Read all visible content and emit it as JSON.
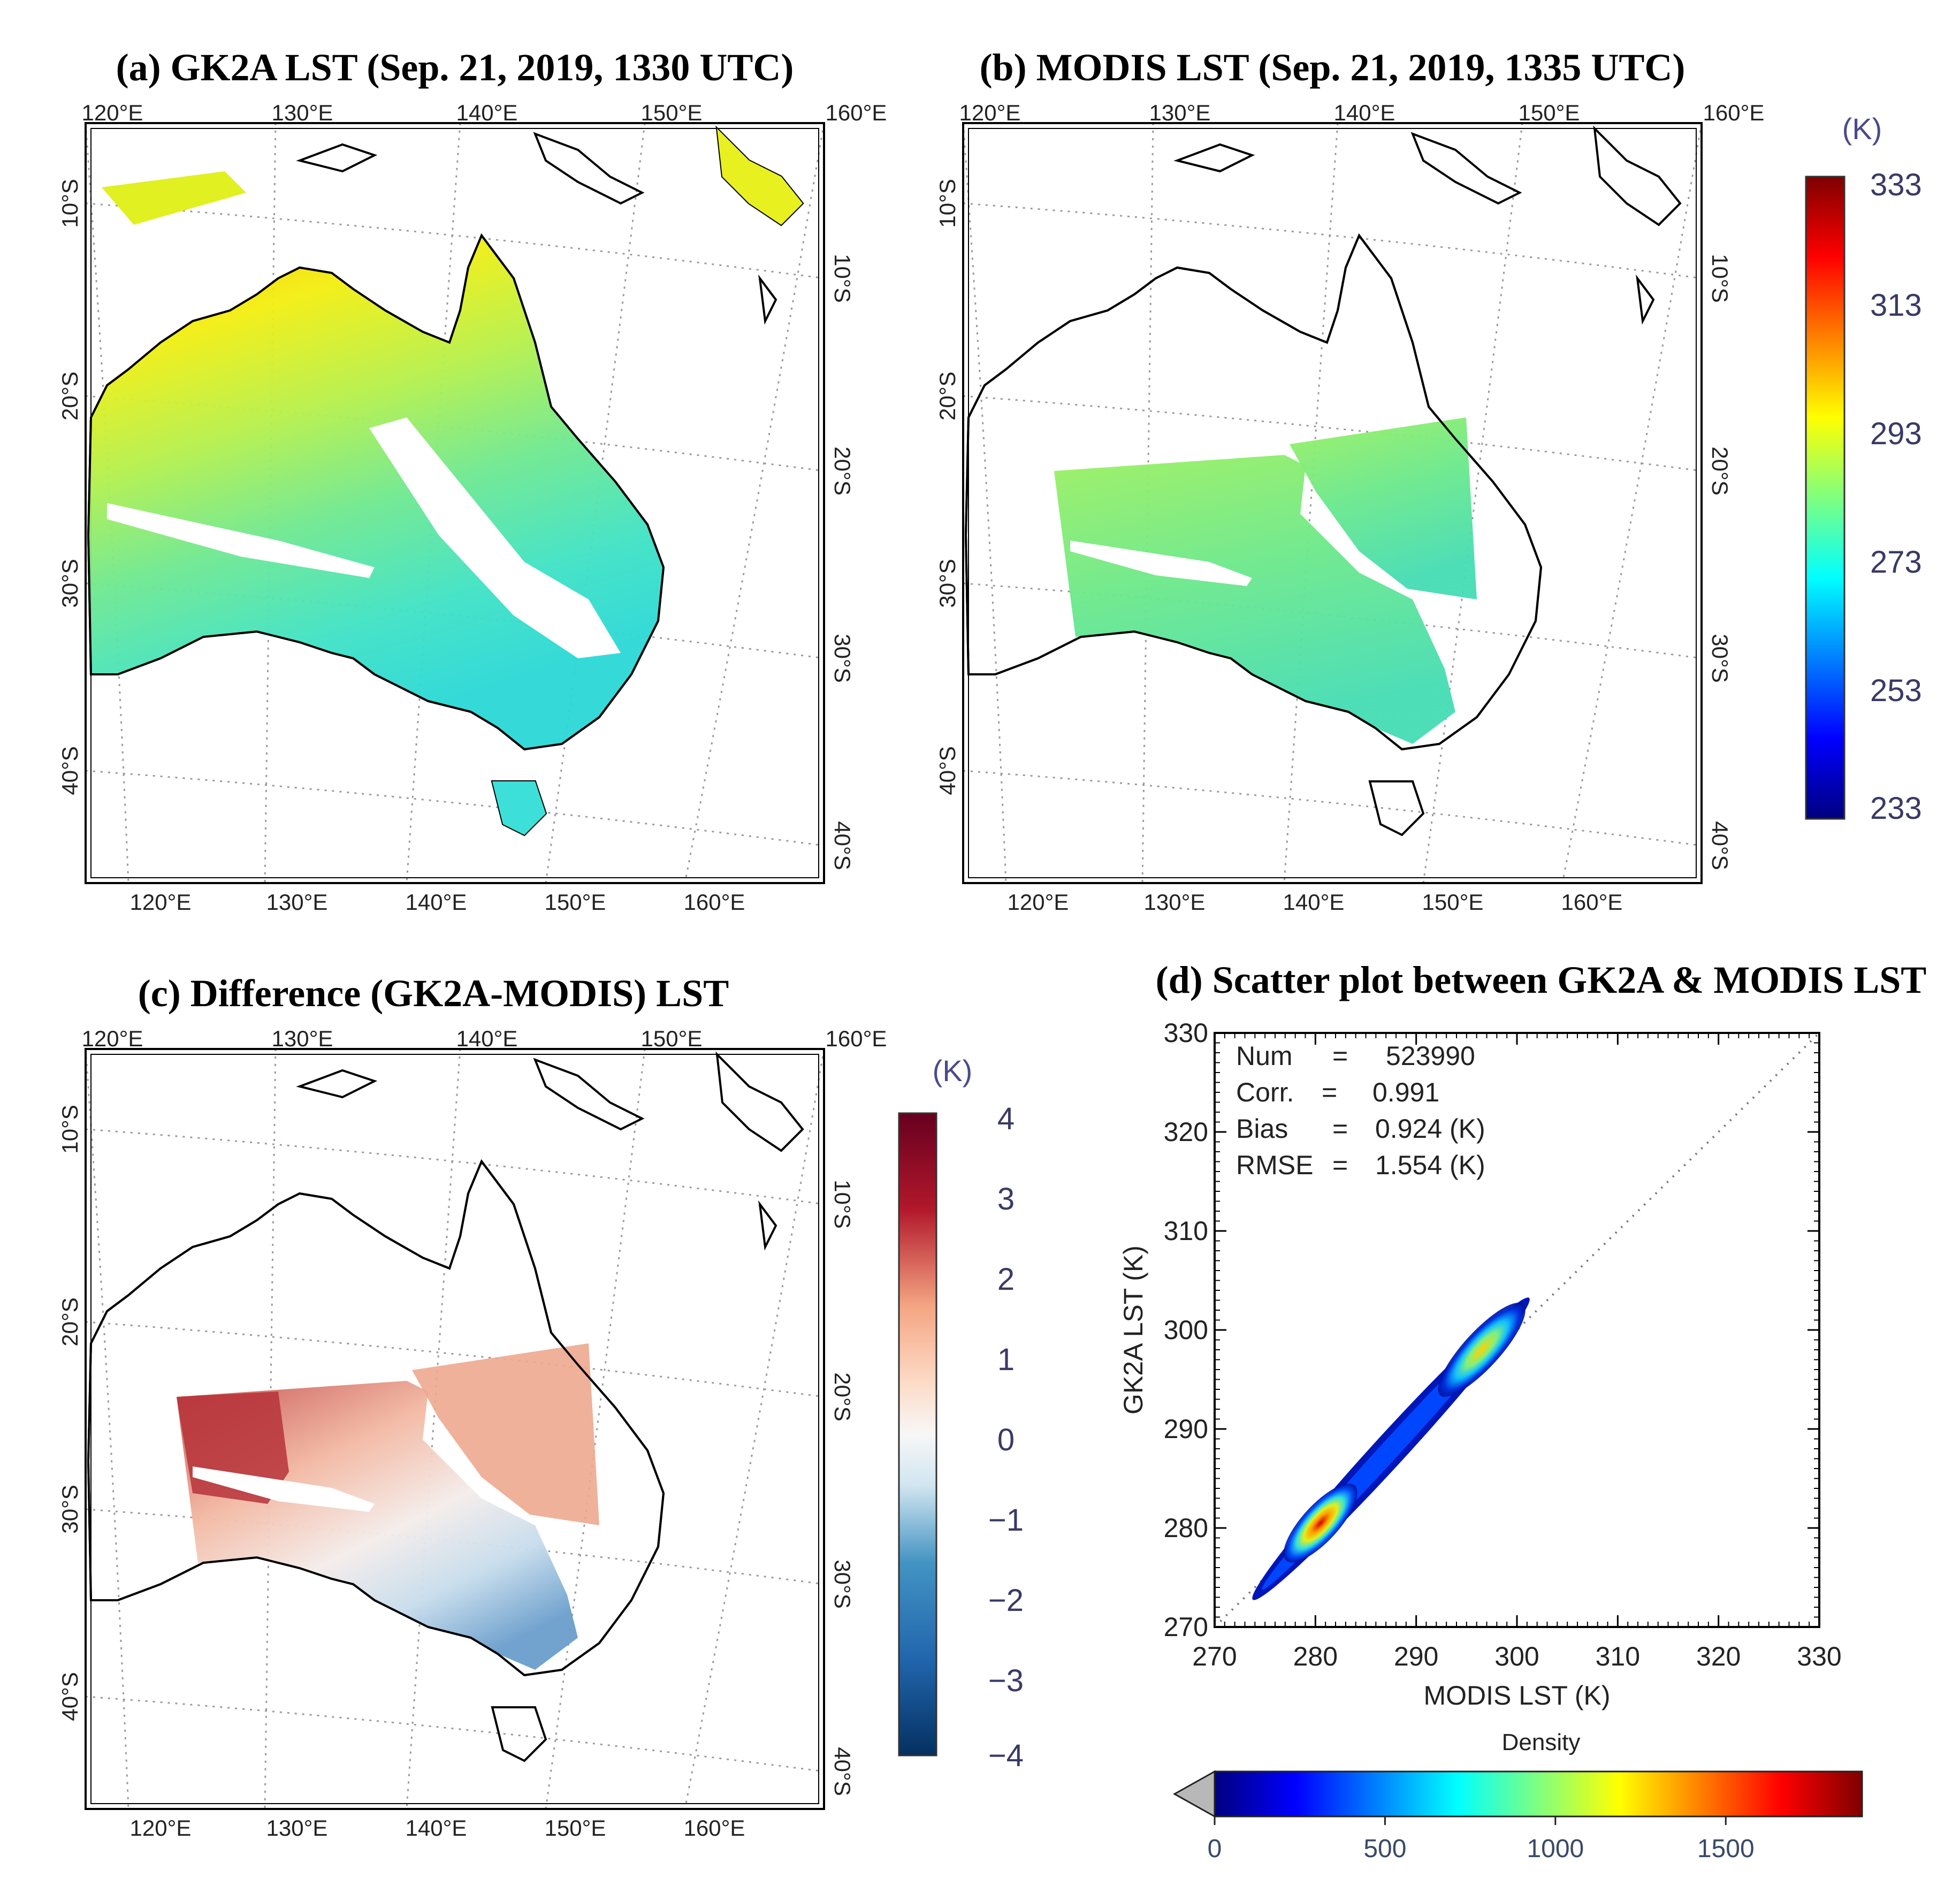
{
  "colors": {
    "jet_dark_blue": "#00007f",
    "jet_blue": "#0000ff",
    "jet_cyan": "#00ffff",
    "jet_green": "#7fff7f",
    "jet_yellow": "#ffff00",
    "jet_red": "#ff0000",
    "jet_dark_red": "#7f0000",
    "rdbu_red": "#67001f",
    "rdbu_white": "#f7f7f7",
    "rdbu_blue": "#053061",
    "land_outline": "#000000"
  },
  "panels": {
    "a": {
      "title": "(a) GK2A LST (Sep. 21, 2019, 1330 UTC)",
      "top_lon_labels": [
        "120°E",
        "130°E",
        "140°E",
        "150°E",
        "160°E"
      ],
      "bottom_lon_labels": [
        "120°E",
        "130°E",
        "140°E",
        "150°E",
        "160°E"
      ],
      "left_lat_labels": [
        "10°S",
        "20°S",
        "30°S",
        "40°S"
      ],
      "right_lat_labels": [
        "10°S",
        "20°S",
        "30°S",
        "40°S"
      ]
    },
    "b": {
      "title": "(b) MODIS LST (Sep. 21, 2019, 1335 UTC)",
      "top_lon_labels": [
        "120°E",
        "130°E",
        "140°E",
        "150°E",
        "160°E"
      ],
      "bottom_lon_labels": [
        "120°E",
        "130°E",
        "140°E",
        "150°E",
        "160°E"
      ],
      "left_lat_labels": [
        "10°S",
        "20°S",
        "30°S",
        "40°S"
      ],
      "right_lat_labels": [
        "10°S",
        "20°S",
        "30°S",
        "40°S"
      ]
    },
    "c": {
      "title": "(c) Difference (GK2A-MODIS) LST",
      "top_lon_labels": [
        "120°E",
        "130°E",
        "140°E",
        "150°E",
        "160°E"
      ],
      "bottom_lon_labels": [
        "120°E",
        "130°E",
        "140°E",
        "150°E",
        "160°E"
      ],
      "left_lat_labels": [
        "10°S",
        "20°S",
        "30°S",
        "40°S"
      ],
      "right_lat_labels": [
        "10°S",
        "20°S",
        "30°S",
        "40°S"
      ]
    }
  },
  "lst_colorbar": {
    "unit": "(K)",
    "ticks": [
      "333",
      "313",
      "293",
      "273",
      "253",
      "233"
    ]
  },
  "diff_colorbar": {
    "unit": "(K)",
    "ticks": [
      "4",
      "3",
      "2",
      "1",
      "0",
      "−1",
      "−2",
      "−3",
      "−4"
    ]
  },
  "chart_data": {
    "type": "scatter",
    "title": "(d) Scatter plot between GK2A & MODIS LST",
    "xlabel": "MODIS LST (K)",
    "ylabel": "GK2A LST (K)",
    "xlim": [
      270,
      330
    ],
    "ylim": [
      270,
      330
    ],
    "xticks": [
      "270",
      "280",
      "290",
      "300",
      "310",
      "320",
      "330"
    ],
    "yticks": [
      "270",
      "280",
      "290",
      "300",
      "310",
      "320",
      "330"
    ],
    "one_to_one_line": true,
    "stats": {
      "num_label": "Num",
      "num_value": "523990",
      "corr_label": "Corr.",
      "corr_value": "0.991",
      "bias_label": "Bias",
      "bias_value": "0.924 (K)",
      "rmse_label": "RMSE",
      "rmse_value": "1.554 (K)",
      "eq": "="
    },
    "point_range": {
      "x": [
        274,
        301
      ],
      "y": [
        273,
        303
      ]
    },
    "density_peaks": [
      {
        "x": 280.5,
        "y": 280.5,
        "density": 1800
      },
      {
        "x": 296.5,
        "y": 298.0,
        "density": 1200
      }
    ],
    "density_colorbar": {
      "label": "Density",
      "ticks": [
        "0",
        "500",
        "1000",
        "1500"
      ],
      "range": [
        0,
        1900
      ]
    }
  }
}
